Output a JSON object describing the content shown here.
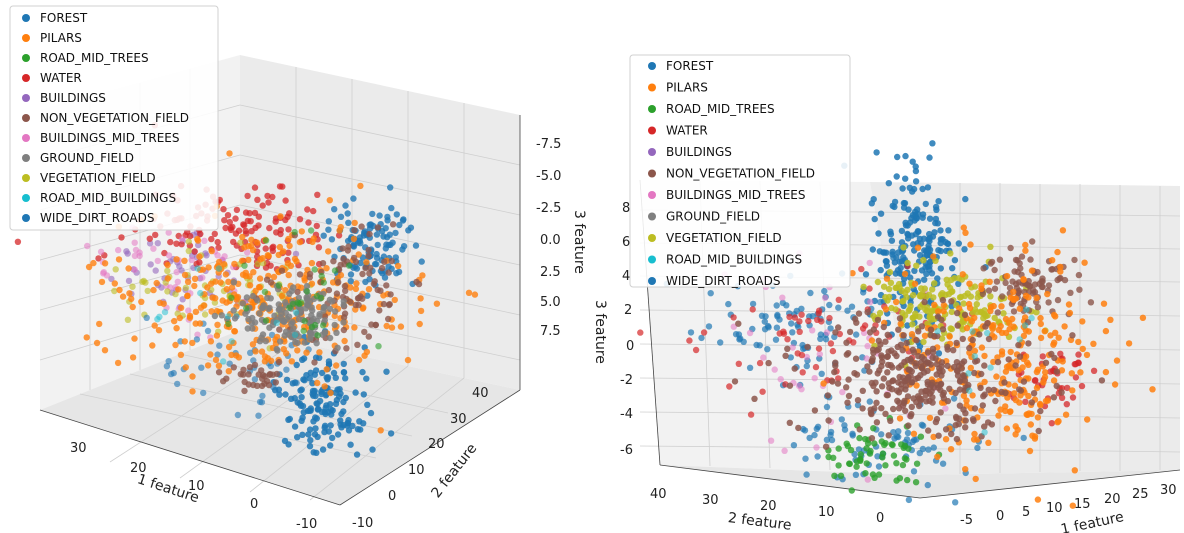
{
  "chart_data": [
    {
      "type": "scatter",
      "dimensions": 3,
      "xlabel": "1 feature",
      "ylabel": "2 feature",
      "zlabel": "3 feature",
      "x_ticks": [
        "30",
        "20",
        "10",
        "0",
        "-10"
      ],
      "y_ticks": [
        "-10",
        "0",
        "10",
        "20",
        "30",
        "40"
      ],
      "z_ticks": [
        "-7.5",
        "-5.0",
        "-2.5",
        "0.0",
        "2.5",
        "5.0",
        "7.5"
      ],
      "legend_location": "top-left",
      "grid": true,
      "series": [
        {
          "name": "FOREST",
          "color": "#1f77b4"
        },
        {
          "name": "PILARS",
          "color": "#ff7f0e"
        },
        {
          "name": "ROAD_MID_TREES",
          "color": "#2ca02c"
        },
        {
          "name": "WATER",
          "color": "#d62728"
        },
        {
          "name": "BUILDINGS",
          "color": "#9467bd"
        },
        {
          "name": "NON_VEGETATION_FIELD",
          "color": "#8c564b"
        },
        {
          "name": "BUILDINGS_MID_TREES",
          "color": "#e377c2"
        },
        {
          "name": "GROUND_FIELD",
          "color": "#7f7f7f"
        },
        {
          "name": "VEGETATION_FIELD",
          "color": "#bcbd22"
        },
        {
          "name": "ROAD_MID_BUILDINGS",
          "color": "#17becf"
        },
        {
          "name": "WIDE_DIRT_ROADS",
          "color": "#1f77b4"
        }
      ]
    },
    {
      "type": "scatter",
      "dimensions": 3,
      "xlabel": "1 feature",
      "ylabel": "2 feature",
      "zlabel": "3 feature",
      "x_ticks": [
        "-5",
        "0",
        "5",
        "10",
        "15",
        "20",
        "25",
        "30"
      ],
      "y_ticks": [
        "40",
        "30",
        "20",
        "10",
        "0"
      ],
      "z_ticks": [
        "8",
        "6",
        "4",
        "2",
        "0",
        "-2",
        "-4",
        "-6"
      ],
      "legend_location": "top-left",
      "grid": true,
      "series": [
        {
          "name": "FOREST",
          "color": "#1f77b4"
        },
        {
          "name": "PILARS",
          "color": "#ff7f0e"
        },
        {
          "name": "ROAD_MID_TREES",
          "color": "#2ca02c"
        },
        {
          "name": "WATER",
          "color": "#d62728"
        },
        {
          "name": "BUILDINGS",
          "color": "#9467bd"
        },
        {
          "name": "NON_VEGETATION_FIELD",
          "color": "#8c564b"
        },
        {
          "name": "BUILDINGS_MID_TREES",
          "color": "#e377c2"
        },
        {
          "name": "GROUND_FIELD",
          "color": "#7f7f7f"
        },
        {
          "name": "VEGETATION_FIELD",
          "color": "#bcbd22"
        },
        {
          "name": "ROAD_MID_BUILDINGS",
          "color": "#17becf"
        },
        {
          "name": "WIDE_DIRT_ROADS",
          "color": "#1f77b4"
        }
      ]
    }
  ]
}
